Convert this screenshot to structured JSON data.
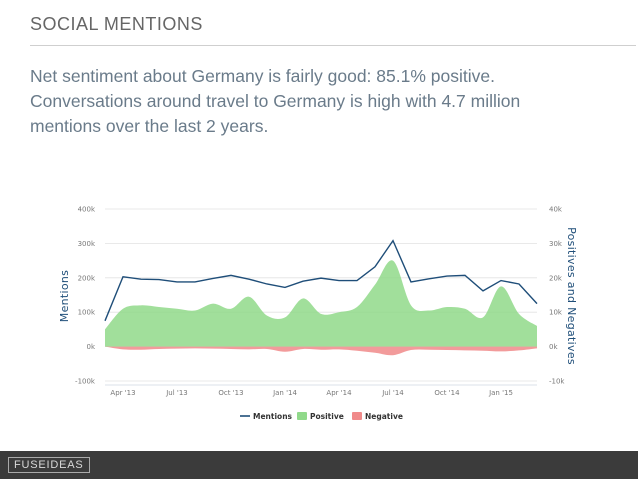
{
  "header": {
    "section_title": "SOCIAL MENTIONS",
    "description": "Net sentiment about Germany is fairly good: 85.1% positive. Conversations around travel to Germany is high with 4.7 million mentions over the last 2 years."
  },
  "footer": {
    "brand": "FUSEIDEAS"
  },
  "chart_data": {
    "type": "line",
    "title": "",
    "x_tick_labels": [
      "Apr '13",
      "Jul '13",
      "Oct '13",
      "Jan '14",
      "Apr '14",
      "Jul '14",
      "Oct '14",
      "Jan '15"
    ],
    "x_tick_index": [
      1,
      4,
      7,
      10,
      13,
      16,
      19,
      22
    ],
    "x": [
      "Mar '13",
      "Apr '13",
      "May '13",
      "Jun '13",
      "Jul '13",
      "Aug '13",
      "Sep '13",
      "Oct '13",
      "Nov '13",
      "Dec '13",
      "Jan '14",
      "Feb '14",
      "Mar '14",
      "Apr '14",
      "May '14",
      "Jun '14",
      "Jul '14",
      "Aug '14",
      "Sep '14",
      "Oct '14",
      "Nov '14",
      "Dec '14",
      "Jan '15",
      "Feb '15",
      "Mar '15"
    ],
    "left_axis": {
      "label": "Mentions",
      "ticks": [
        "400k",
        "300k",
        "200k",
        "100k",
        "0k",
        "-100k"
      ],
      "ylim": [
        -100000,
        400000
      ]
    },
    "right_axis": {
      "label": "Positives and Negatives",
      "ticks": [
        "40k",
        "30k",
        "20k",
        "10k",
        "0k",
        "-10k"
      ],
      "ylim": [
        -10000,
        40000
      ]
    },
    "series": [
      {
        "name": "Mentions",
        "axis": "left",
        "color": "#1f4e79",
        "values": [
          75000,
          203000,
          196000,
          195000,
          188000,
          188000,
          198000,
          207000,
          196000,
          182000,
          172000,
          190000,
          199000,
          192000,
          192000,
          232000,
          308000,
          188000,
          197000,
          205000,
          207000,
          162000,
          192000,
          182000,
          125000
        ]
      },
      {
        "name": "Positive",
        "axis": "right",
        "color": "#90d98a",
        "values": [
          5000,
          11000,
          12000,
          11500,
          11000,
          10500,
          12500,
          11000,
          14500,
          9000,
          8500,
          14000,
          9500,
          10000,
          11500,
          18000,
          25000,
          12000,
          10500,
          11500,
          11000,
          8500,
          17500,
          9500,
          6000
        ]
      },
      {
        "name": "Negative",
        "axis": "right",
        "color": "#f08a8a",
        "values": [
          0,
          -800,
          -900,
          -700,
          -600,
          -500,
          -600,
          -700,
          -800,
          -700,
          -1500,
          -700,
          -900,
          -800,
          -1200,
          -1800,
          -2500,
          -1000,
          -900,
          -1000,
          -1100,
          -1200,
          -1400,
          -1100,
          -500
        ]
      }
    ],
    "legend": {
      "position": "bottom",
      "items": [
        "Mentions",
        "Positive",
        "Negative"
      ]
    },
    "grid": true
  }
}
